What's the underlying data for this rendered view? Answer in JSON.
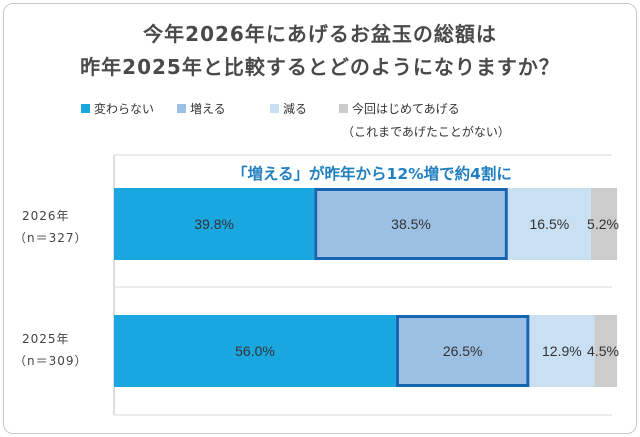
{
  "title_line1": "今年2026年にあげるお盆玉の総額は",
  "title_line2": "昨年2025年と比較するとどのようになりますか？",
  "legend": [
    {
      "label": "変わらない",
      "color": "#1aa7e0"
    },
    {
      "label": "増える",
      "color": "#9cbfe4"
    },
    {
      "label": "減る",
      "color": "#c9dff2"
    },
    {
      "label": "今回はじめてあげる",
      "color": "#cccccc"
    }
  ],
  "legend_sub": "（これまであげたことがない）",
  "annotation": "「増える」が昨年から12%増で約4割に",
  "row_labels": [
    {
      "year": "2026年",
      "n": "（n＝327）"
    },
    {
      "year": "2025年",
      "n": "（n＝309）"
    }
  ],
  "highlight_color": "#1565b0",
  "chart_data": {
    "type": "bar",
    "orientation": "horizontal",
    "stacked": "100%",
    "categories": [
      "2026年",
      "2025年"
    ],
    "series": [
      {
        "name": "変わらない",
        "values": [
          39.8,
          56.0
        ],
        "labels": [
          "39.8%",
          "56.0%"
        ]
      },
      {
        "name": "増える",
        "values": [
          38.5,
          26.5
        ],
        "labels": [
          "38.5%",
          "26.5%"
        ]
      },
      {
        "name": "減る",
        "values": [
          16.5,
          12.9
        ],
        "labels": [
          "16.5%",
          "12.9%"
        ]
      },
      {
        "name": "今回はじめてあげる",
        "values": [
          5.2,
          4.5
        ],
        "labels": [
          "5.2%",
          "4.5%"
        ]
      }
    ],
    "highlight_series": "増える"
  }
}
